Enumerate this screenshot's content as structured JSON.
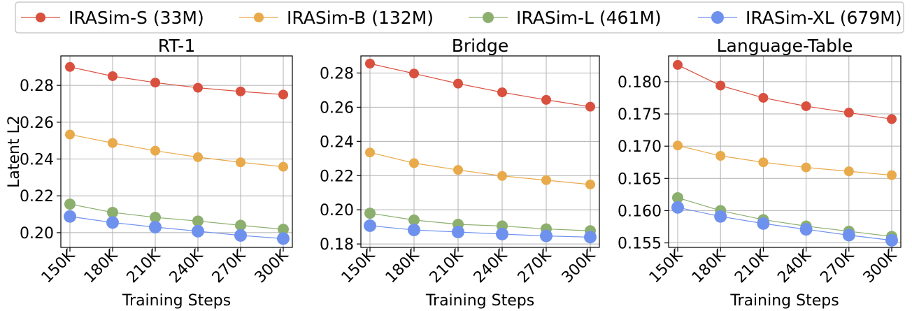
{
  "chart_data": [
    {
      "type": "line",
      "title": "RT-1",
      "xlabel": "Training Steps",
      "ylabel": "Latent L2",
      "categories": [
        "150K",
        "180K",
        "210K",
        "240K",
        "270K",
        "300K"
      ],
      "ylim": [
        0.192,
        0.296
      ],
      "yticks": [
        "0.20",
        "0.22",
        "0.24",
        "0.26",
        "0.28"
      ],
      "grid": true,
      "series": [
        {
          "name": "IRASim-S (33M)",
          "values": [
            0.29,
            0.285,
            0.2815,
            0.2787,
            0.2767,
            0.275
          ]
        },
        {
          "name": "IRASim-B (132M)",
          "values": [
            0.2533,
            0.2487,
            0.2445,
            0.241,
            0.2382,
            0.2358
          ]
        },
        {
          "name": "IRASim-L (461M)",
          "values": [
            0.2155,
            0.211,
            0.2083,
            0.2063,
            0.204,
            0.2018
          ]
        },
        {
          "name": "IRASim-XL (679M)",
          "values": [
            0.2088,
            0.2055,
            0.203,
            0.2008,
            0.1985,
            0.1968
          ]
        }
      ]
    },
    {
      "type": "line",
      "title": "Bridge",
      "xlabel": "Training Steps",
      "ylabel": "",
      "categories": [
        "150K",
        "180K",
        "210K",
        "240K",
        "270K",
        "300K"
      ],
      "ylim": [
        0.178,
        0.29
      ],
      "yticks": [
        "0.18",
        "0.20",
        "0.22",
        "0.24",
        "0.26",
        "0.28"
      ],
      "grid": true,
      "series": [
        {
          "name": "IRASim-S (33M)",
          "values": [
            0.2855,
            0.2797,
            0.2738,
            0.2687,
            0.2643,
            0.2603
          ]
        },
        {
          "name": "IRASim-B (132M)",
          "values": [
            0.2335,
            0.2273,
            0.2233,
            0.2198,
            0.2173,
            0.2148
          ]
        },
        {
          "name": "IRASim-L (461M)",
          "values": [
            0.198,
            0.194,
            0.1915,
            0.1905,
            0.1888,
            0.1877
          ]
        },
        {
          "name": "IRASim-XL (679M)",
          "values": [
            0.1907,
            0.1882,
            0.187,
            0.1858,
            0.1847,
            0.184
          ]
        }
      ]
    },
    {
      "type": "line",
      "title": "Language-Table",
      "xlabel": "Training Steps",
      "ylabel": "",
      "categories": [
        "150K",
        "180K",
        "210K",
        "240K",
        "270K",
        "300K"
      ],
      "ylim": [
        0.1543,
        0.184
      ],
      "yticks": [
        "0.155",
        "0.160",
        "0.165",
        "0.170",
        "0.175",
        "0.180"
      ],
      "grid": true,
      "series": [
        {
          "name": "IRASim-S (33M)",
          "values": [
            0.1826,
            0.1794,
            0.1775,
            0.1762,
            0.1752,
            0.1742
          ]
        },
        {
          "name": "IRASim-B (132M)",
          "values": [
            0.1701,
            0.1685,
            0.1675,
            0.1667,
            0.1661,
            0.1655
          ]
        },
        {
          "name": "IRASim-L (461M)",
          "values": [
            0.162,
            0.16,
            0.1586,
            0.1576,
            0.1568,
            0.156
          ]
        },
        {
          "name": "IRASim-XL (679M)",
          "values": [
            0.1605,
            0.1591,
            0.158,
            0.1571,
            0.1562,
            0.1554
          ]
        }
      ]
    }
  ],
  "legend": {
    "placement": "top",
    "items": [
      {
        "label": "IRASim-S (33M)",
        "color": "#d9503f"
      },
      {
        "label": "IRASim-B (132M)",
        "color": "#e9aa4b"
      },
      {
        "label": "IRASim-L (461M)",
        "color": "#8caf6e"
      },
      {
        "label": "IRASim-XL (679M)",
        "color": "#6f91ee"
      }
    ]
  }
}
